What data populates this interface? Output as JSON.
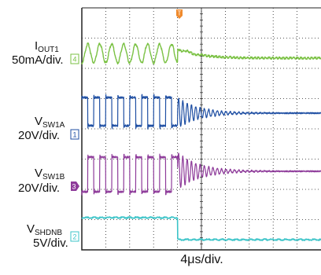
{
  "chart_data": {
    "type": "line",
    "time_division": "4μs/div.",
    "trigger_marker": "T",
    "colors": {
      "grid": "#222222",
      "iout1": "#7ac143",
      "vsw1a": "#1f4fa3",
      "vsw1b": "#8e3b9a",
      "vshdnb": "#3cc4c8"
    },
    "channels": [
      {
        "id": "iout1",
        "label_main": "I",
        "label_sub": "OUT1",
        "scale": "50mA/div.",
        "marker": "4"
      },
      {
        "id": "vsw1a",
        "label_main": "V",
        "label_sub": "SW1A",
        "scale": "20V/div.",
        "marker": "1"
      },
      {
        "id": "vsw1b",
        "label_main": "V",
        "label_sub": "SW1B",
        "scale": "20V/div.",
        "marker": "3"
      },
      {
        "id": "vshdnb",
        "label_main": "V",
        "label_sub": "SHDNB",
        "scale": "5V/div.",
        "marker": "2"
      }
    ],
    "shutdown_event_time_div": 4.0,
    "switching_period_div": 0.5,
    "grid_divisions_x": 10,
    "grid_divisions_y": 8
  }
}
